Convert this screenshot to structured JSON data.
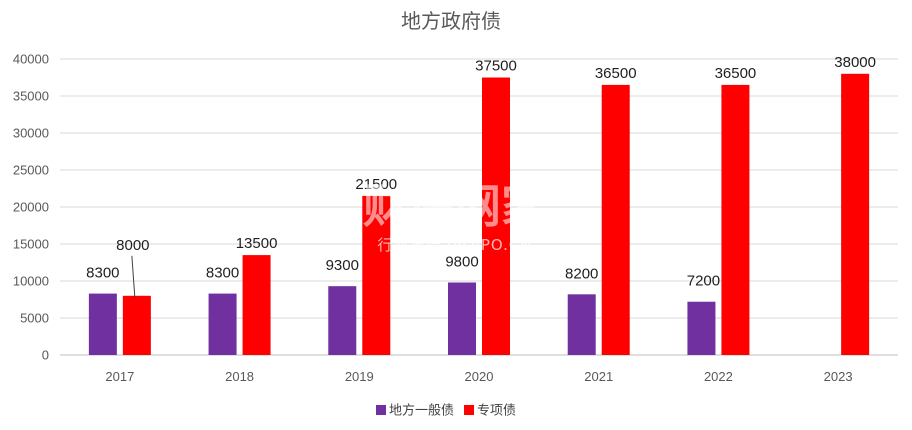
{
  "chart_data": {
    "type": "bar",
    "title": "地方政府债",
    "categories": [
      "2017",
      "2018",
      "2019",
      "2020",
      "2021",
      "2022",
      "2023"
    ],
    "series": [
      {
        "name": "地方一般债",
        "color": "#7030a0",
        "values": [
          8300,
          8300,
          9300,
          9800,
          8200,
          7200,
          null
        ]
      },
      {
        "name": "专项债",
        "color": "#ff0000",
        "values": [
          8000,
          13500,
          21500,
          37500,
          36500,
          36500,
          38000
        ]
      }
    ],
    "ylim": [
      0,
      40000
    ],
    "yticks": [
      0,
      5000,
      10000,
      15000,
      20000,
      25000,
      30000,
      35000,
      40000
    ],
    "grid": true,
    "legend_position": "bottom",
    "xlabel": "",
    "ylabel": ""
  },
  "watermark": {
    "main": "财经网家",
    "sub": "行业报告 IPOIPO.CN"
  }
}
